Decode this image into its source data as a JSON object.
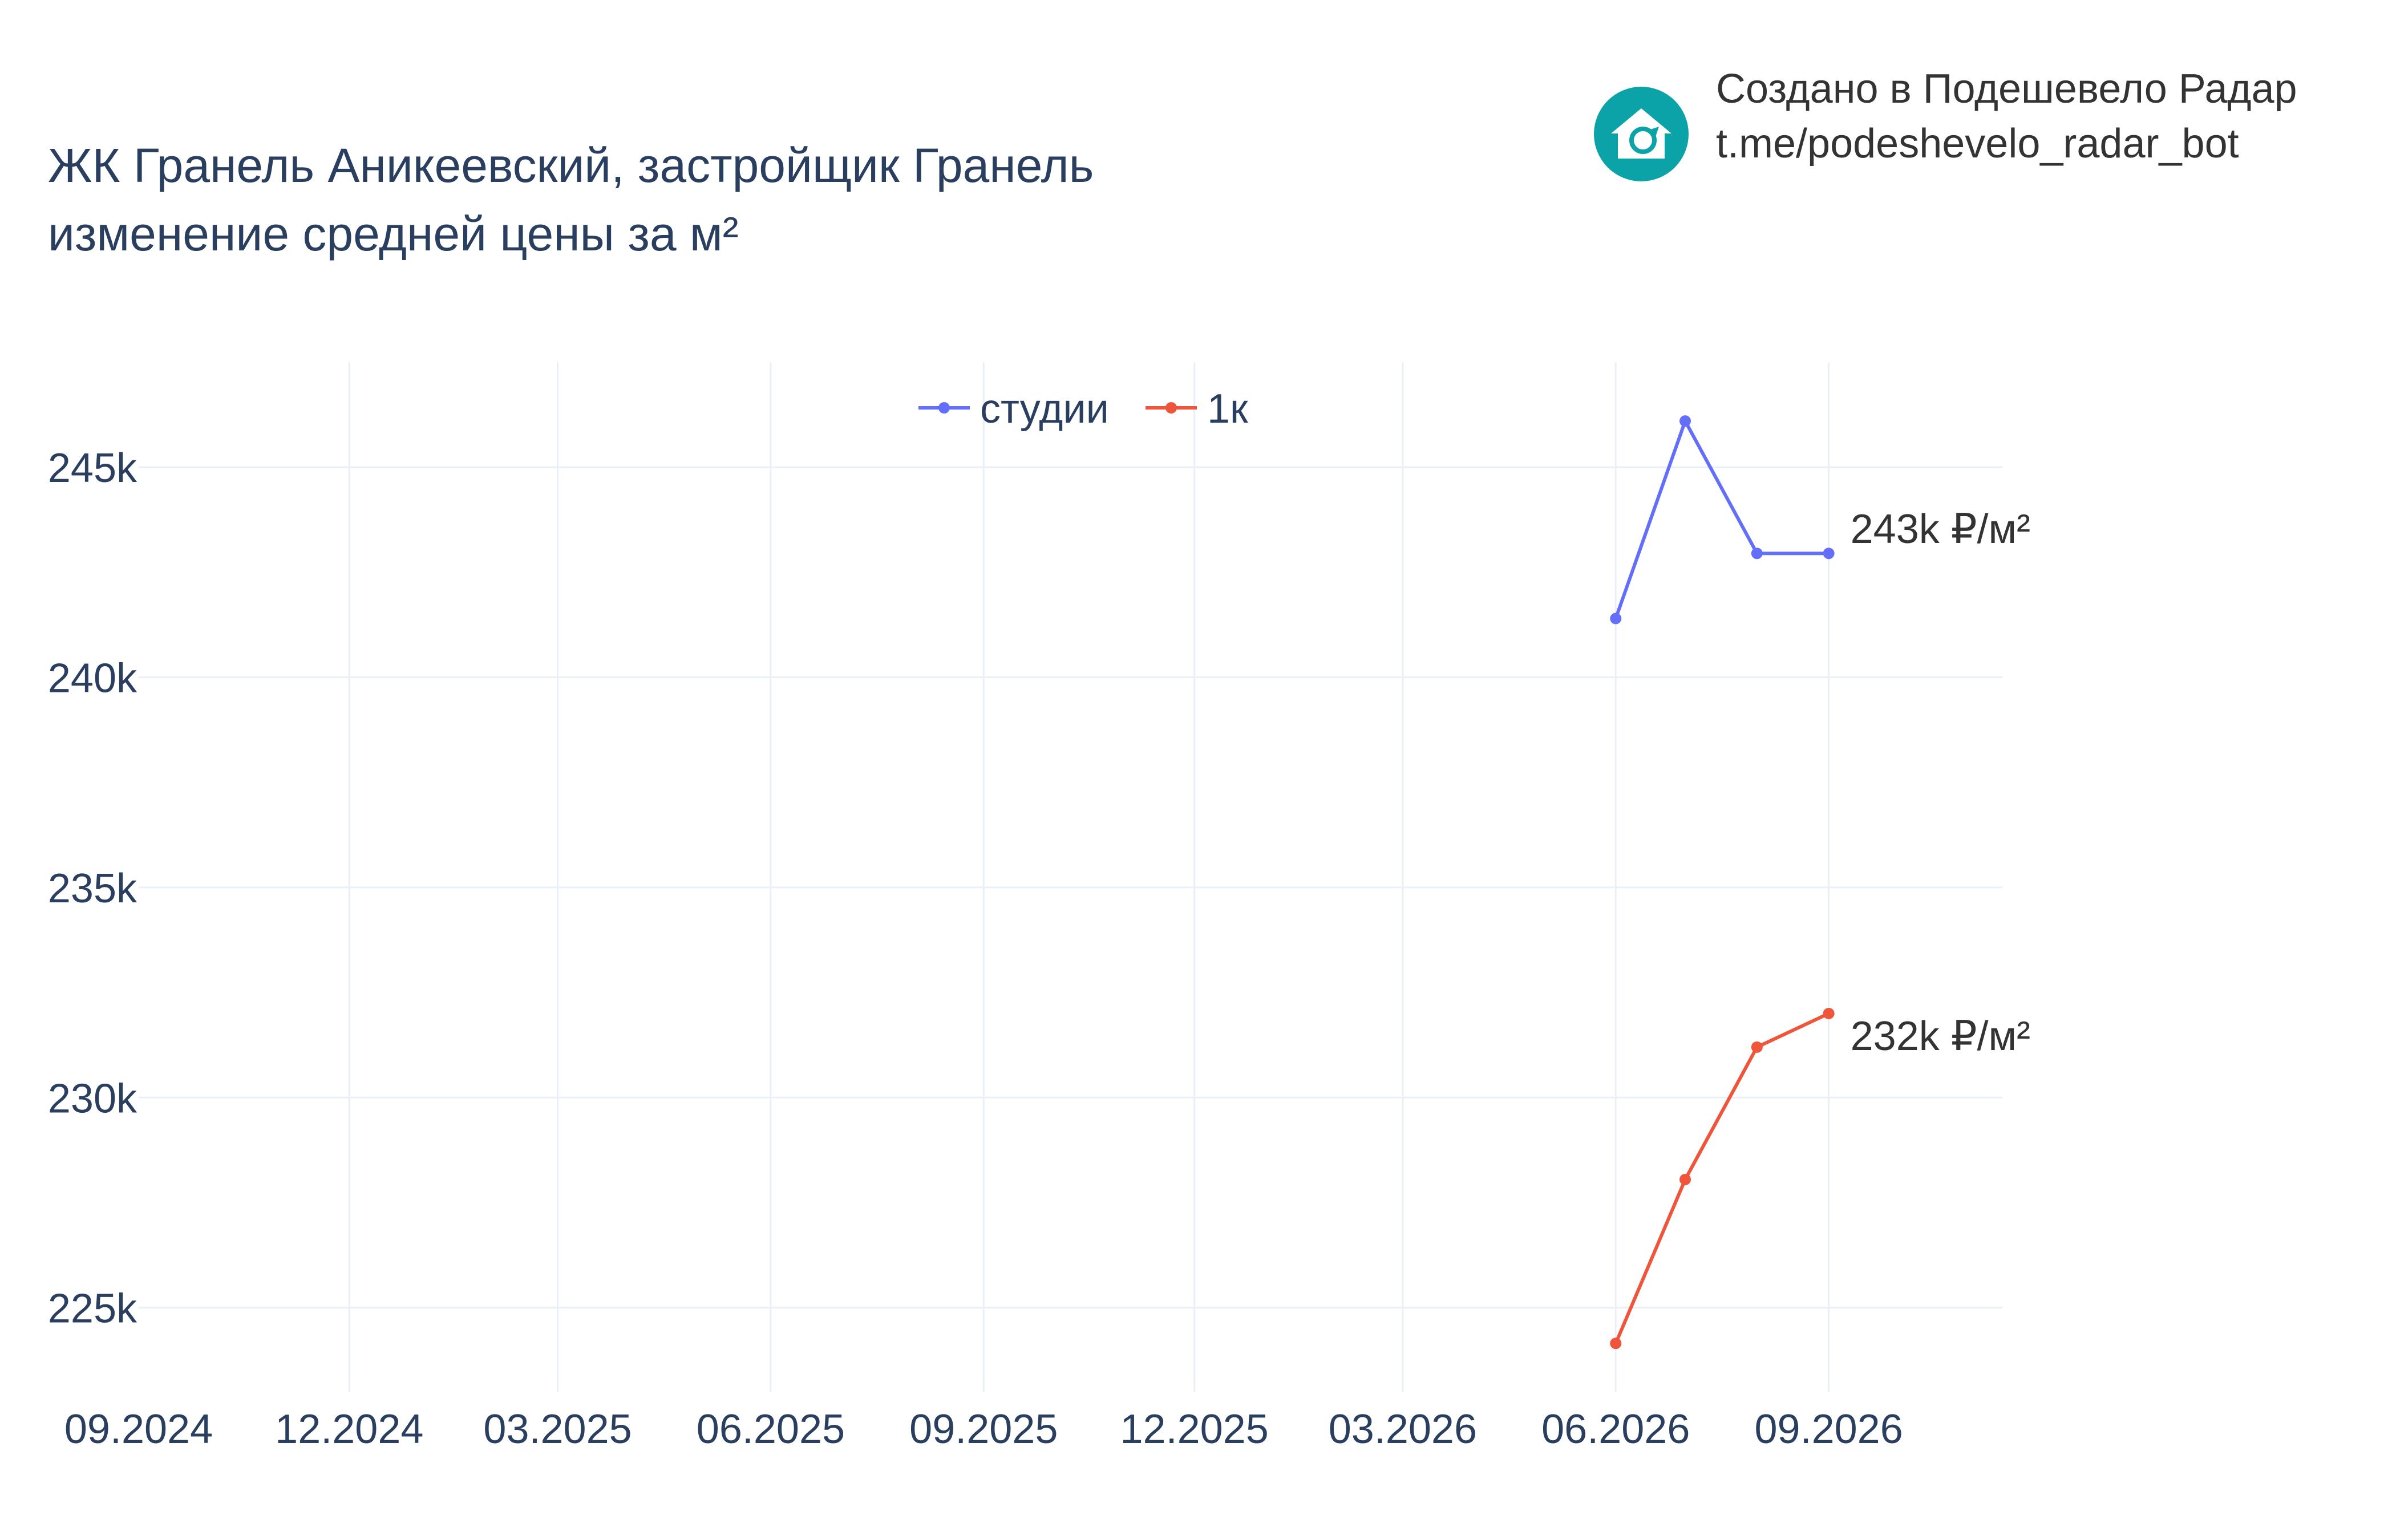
{
  "header": {
    "title_line1": "ЖК Гранель Аникеевский, застройщик Гранель",
    "title_line2": "изменение средней цены за м²"
  },
  "branding": {
    "line1": "Создано в Подешевело Радар",
    "line2": "t.me/podeshevelo_radar_bot",
    "logo_icon": "house-arrow-icon",
    "logo_color": "#0ca3a8"
  },
  "chart_data": {
    "type": "line",
    "title": "ЖК Гранель Аникеевский, застройщик Гранель\nизменение средней цены за м²",
    "xlabel": "",
    "ylabel": "",
    "x_tick_labels": [
      "09.2024",
      "12.2024",
      "03.2025",
      "06.2025",
      "09.2025",
      "12.2025",
      "03.2026",
      "06.2026",
      "09.2026"
    ],
    "x_range": [
      "2024-09-01",
      "2026-11-15"
    ],
    "y_tick_labels": [
      "225k",
      "230k",
      "235k",
      "240k",
      "245k"
    ],
    "y_ticks": [
      225000,
      230000,
      235000,
      240000,
      245000
    ],
    "ylim": [
      223000,
      247500
    ],
    "grid": true,
    "legend_position": "top-center",
    "series": [
      {
        "name": "студии",
        "color": "#636efa",
        "x": [
          "2026-06-01",
          "2026-07-01",
          "2026-08-01",
          "2026-09-01"
        ],
        "y": [
          241400,
          246100,
          242950,
          242950
        ],
        "end_label": "243k ₽/м²"
      },
      {
        "name": "1к",
        "color": "#ef553b",
        "x": [
          "2026-06-01",
          "2026-07-01",
          "2026-08-01",
          "2026-09-01"
        ],
        "y": [
          224150,
          228050,
          231200,
          232000
        ],
        "end_label": "232k ₽/м²"
      }
    ]
  }
}
